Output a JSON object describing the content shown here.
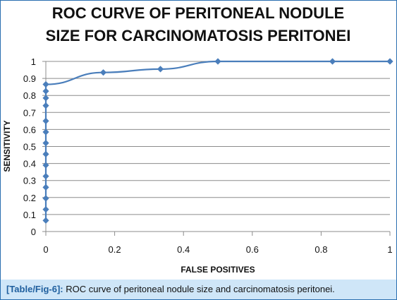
{
  "caption": {
    "ref": "[Table/Fig-6]:",
    "text": "ROC curve of peritoneal nodule size and carcinomatosis peritonei."
  },
  "chart_data": {
    "type": "line",
    "title_lines": [
      "ROC CURVE OF PERITONEAL NODULE",
      "SIZE FOR CARCINOMATOSIS PERITONEI"
    ],
    "xlabel": "FALSE POSITIVES",
    "ylabel": "SENSITIVITY",
    "xlim": [
      0,
      1
    ],
    "ylim": [
      0,
      1
    ],
    "x_ticks": [
      "0",
      "0.2",
      "0.4",
      "0.6",
      "0.8",
      "1"
    ],
    "y_ticks": [
      "0",
      "0.1",
      "0.2",
      "0.3",
      "0.4",
      "0.5",
      "0.6",
      "0.7",
      "0.8",
      "0.9",
      "1"
    ],
    "grid": "horizontal",
    "legend": "none",
    "color": "#4a7ebb",
    "series": [
      {
        "x": [
          0,
          0,
          0,
          0,
          0,
          0,
          0,
          0,
          0,
          0,
          0,
          0,
          0,
          0,
          0.167,
          0.333,
          0.5,
          0.833,
          1
        ],
        "y": [
          0.065,
          0.13,
          0.195,
          0.26,
          0.325,
          0.39,
          0.455,
          0.52,
          0.585,
          0.65,
          0.74,
          0.785,
          0.825,
          0.865,
          0.935,
          0.955,
          1,
          1,
          1
        ]
      }
    ]
  }
}
